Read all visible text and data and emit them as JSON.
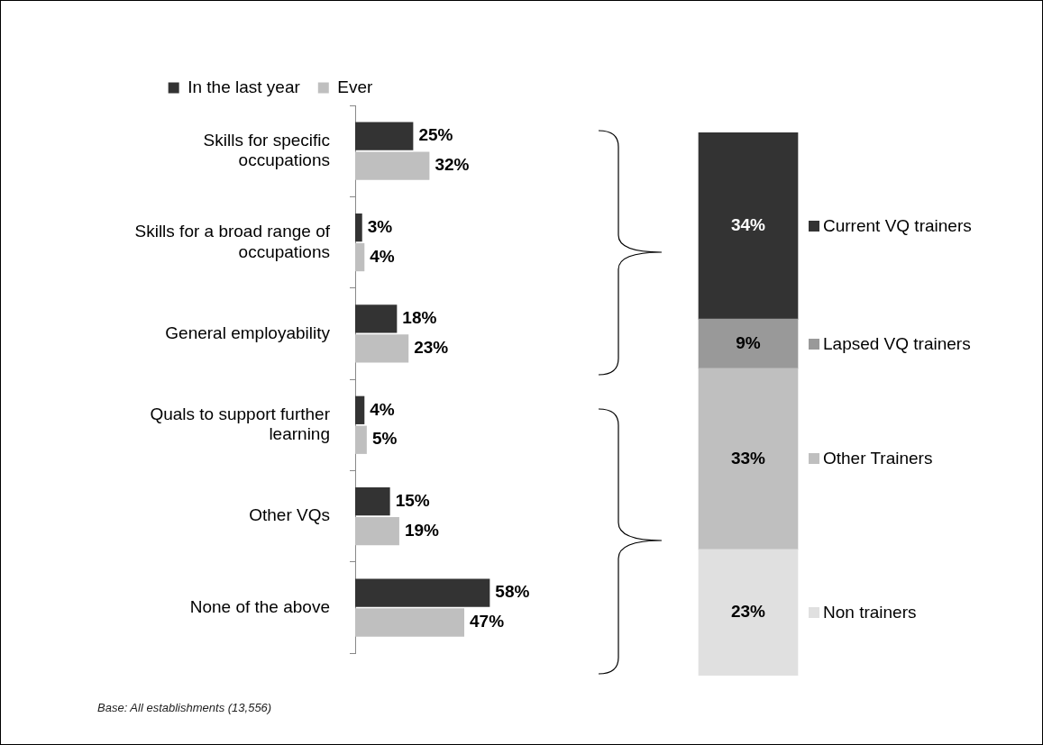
{
  "chart_data": [
    {
      "type": "bar",
      "orientation": "horizontal",
      "categories": [
        "Skills for specific occupations",
        "Skills for a broad range of occupations",
        "General employability",
        "Quals to support further learning",
        "Other VQs",
        "None of the above"
      ],
      "series": [
        {
          "name": "In the last year",
          "color": "#333333",
          "values": [
            25,
            3,
            18,
            4,
            15,
            58
          ],
          "value_labels": [
            "25%",
            "3%",
            "18%",
            "4%",
            "15%",
            "58%"
          ]
        },
        {
          "name": "Ever",
          "color": "#bfbfbf",
          "values": [
            32,
            4,
            23,
            5,
            19,
            47
          ],
          "value_labels": [
            "32%",
            "4%",
            "23%",
            "5%",
            "19%",
            "47%"
          ]
        }
      ],
      "legend": "top",
      "annotations": [
        "Base: All establishments (13,556)"
      ]
    },
    {
      "type": "bar",
      "stacked": true,
      "categories": [
        null
      ],
      "series": [
        {
          "name": "Non trainers",
          "color": "#e0e0e0",
          "values": [
            23
          ],
          "value_labels": [
            "23%"
          ]
        },
        {
          "name": "Other Trainers",
          "color": "#bfbfbf",
          "values": [
            33
          ],
          "value_labels": [
            "33%"
          ]
        },
        {
          "name": "Lapsed VQ trainers",
          "color": "#999999",
          "values": [
            9
          ],
          "value_labels": [
            "9%"
          ]
        },
        {
          "name": "Current VQ trainers",
          "color": "#333333",
          "values": [
            34
          ],
          "value_labels": [
            "34%"
          ]
        }
      ],
      "legend": "right"
    }
  ]
}
